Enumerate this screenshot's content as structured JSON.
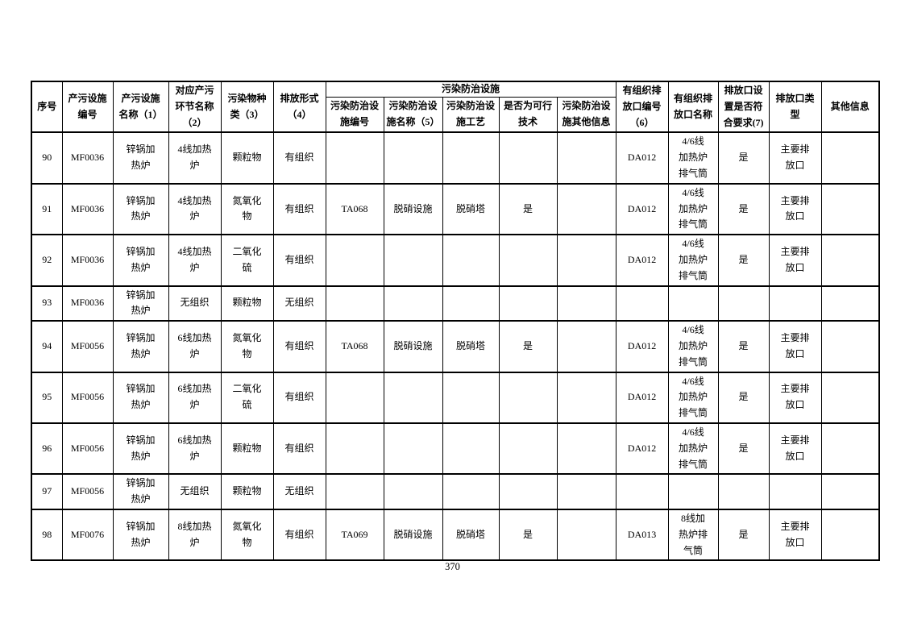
{
  "page": {
    "footer_page_number": "370"
  },
  "table": {
    "header": {
      "group_label": "污染防治设施",
      "left_columns": [
        "序号",
        "产污设施\n编号",
        "产污设施\n名称（1）",
        "对应产污\n环节名称\n（2）",
        "污染物种\n类（3）",
        "排放形式\n（4）"
      ],
      "group_columns": [
        "污染防治设\n施编号",
        "污染防治设\n施名称（5）",
        "污染防治设\n施工艺",
        "是否为可行\n技术",
        "污染防治设\n施其他信息"
      ],
      "right_columns": [
        "有组织排\n放口编号\n（6）",
        "有组织排\n放口名称",
        "排放口设\n置是否符\n合要求(7)",
        "排放口类\n型",
        "其他信息"
      ]
    },
    "rows": [
      [
        "90",
        "MF0036",
        "锌锅加\n热炉",
        "4线加热\n炉",
        "颗粒物",
        "有组织",
        "",
        "",
        "",
        "",
        "",
        "DA012",
        "4/6线\n加热炉\n排气筒",
        "是",
        "主要排\n放口",
        ""
      ],
      [
        "91",
        "MF0036",
        "锌锅加\n热炉",
        "4线加热\n炉",
        "氮氧化\n物",
        "有组织",
        "TA068",
        "脱硝设施",
        "脱硝塔",
        "是",
        "",
        "DA012",
        "4/6线\n加热炉\n排气筒",
        "是",
        "主要排\n放口",
        ""
      ],
      [
        "92",
        "MF0036",
        "锌锅加\n热炉",
        "4线加热\n炉",
        "二氧化\n硫",
        "有组织",
        "",
        "",
        "",
        "",
        "",
        "DA012",
        "4/6线\n加热炉\n排气筒",
        "是",
        "主要排\n放口",
        ""
      ],
      [
        "93",
        "MF0036",
        "锌锅加\n热炉",
        "无组织",
        "颗粒物",
        "无组织",
        "",
        "",
        "",
        "",
        "",
        "",
        "",
        "",
        "",
        ""
      ],
      [
        "94",
        "MF0056",
        "锌锅加\n热炉",
        "6线加热\n炉",
        "氮氧化\n物",
        "有组织",
        "TA068",
        "脱硝设施",
        "脱硝塔",
        "是",
        "",
        "DA012",
        "4/6线\n加热炉\n排气筒",
        "是",
        "主要排\n放口",
        ""
      ],
      [
        "95",
        "MF0056",
        "锌锅加\n热炉",
        "6线加热\n炉",
        "二氧化\n硫",
        "有组织",
        "",
        "",
        "",
        "",
        "",
        "DA012",
        "4/6线\n加热炉\n排气筒",
        "是",
        "主要排\n放口",
        ""
      ],
      [
        "96",
        "MF0056",
        "锌锅加\n热炉",
        "6线加热\n炉",
        "颗粒物",
        "有组织",
        "",
        "",
        "",
        "",
        "",
        "DA012",
        "4/6线\n加热炉\n排气筒",
        "是",
        "主要排\n放口",
        ""
      ],
      [
        "97",
        "MF0056",
        "锌锅加\n热炉",
        "无组织",
        "颗粒物",
        "无组织",
        "",
        "",
        "",
        "",
        "",
        "",
        "",
        "",
        "",
        ""
      ],
      [
        "98",
        "MF0076",
        "锌锅加\n热炉",
        "8线加热\n炉",
        "氮氧化\n物",
        "有组织",
        "TA069",
        "脱硝设施",
        "脱硝塔",
        "是",
        "",
        "DA013",
        "8线加\n热炉排\n气筒",
        "是",
        "主要排\n放口",
        ""
      ]
    ],
    "colors": {
      "text": "#000000",
      "border": "#000000",
      "page_background": "#ffffff"
    }
  }
}
